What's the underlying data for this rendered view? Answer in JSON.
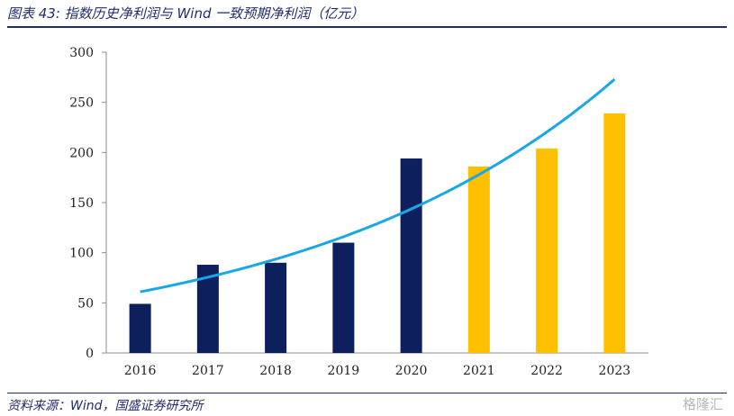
{
  "header": {
    "title": "图表 43: 指数历史净利润与 Wind 一致预期净利润（亿元）"
  },
  "footer": {
    "source": "资料来源：Wind，国盛证券研究所",
    "watermark": "格隆汇"
  },
  "colors": {
    "historical": "#0d1f5c",
    "forecast": "#ffc000",
    "trend": "#1aa7e6",
    "rule": "#1f2d6b"
  },
  "chart_data": {
    "type": "bar",
    "categories": [
      "2016",
      "2017",
      "2018",
      "2019",
      "2020",
      "2021",
      "2022",
      "2023"
    ],
    "series": [
      {
        "values": [
          49,
          88,
          90,
          110,
          194,
          186,
          204,
          239
        ]
      }
    ],
    "bar_kind": [
      "historical",
      "historical",
      "historical",
      "historical",
      "historical",
      "forecast",
      "forecast",
      "forecast"
    ],
    "trendline": {
      "type": "exponential",
      "values": [
        61,
        76,
        94,
        115,
        142,
        175,
        217,
        273
      ]
    },
    "ylim": [
      0,
      300
    ],
    "yticks": [
      "0",
      "50",
      "100",
      "150",
      "200",
      "250",
      "300"
    ],
    "grid": false,
    "legend": "none"
  }
}
